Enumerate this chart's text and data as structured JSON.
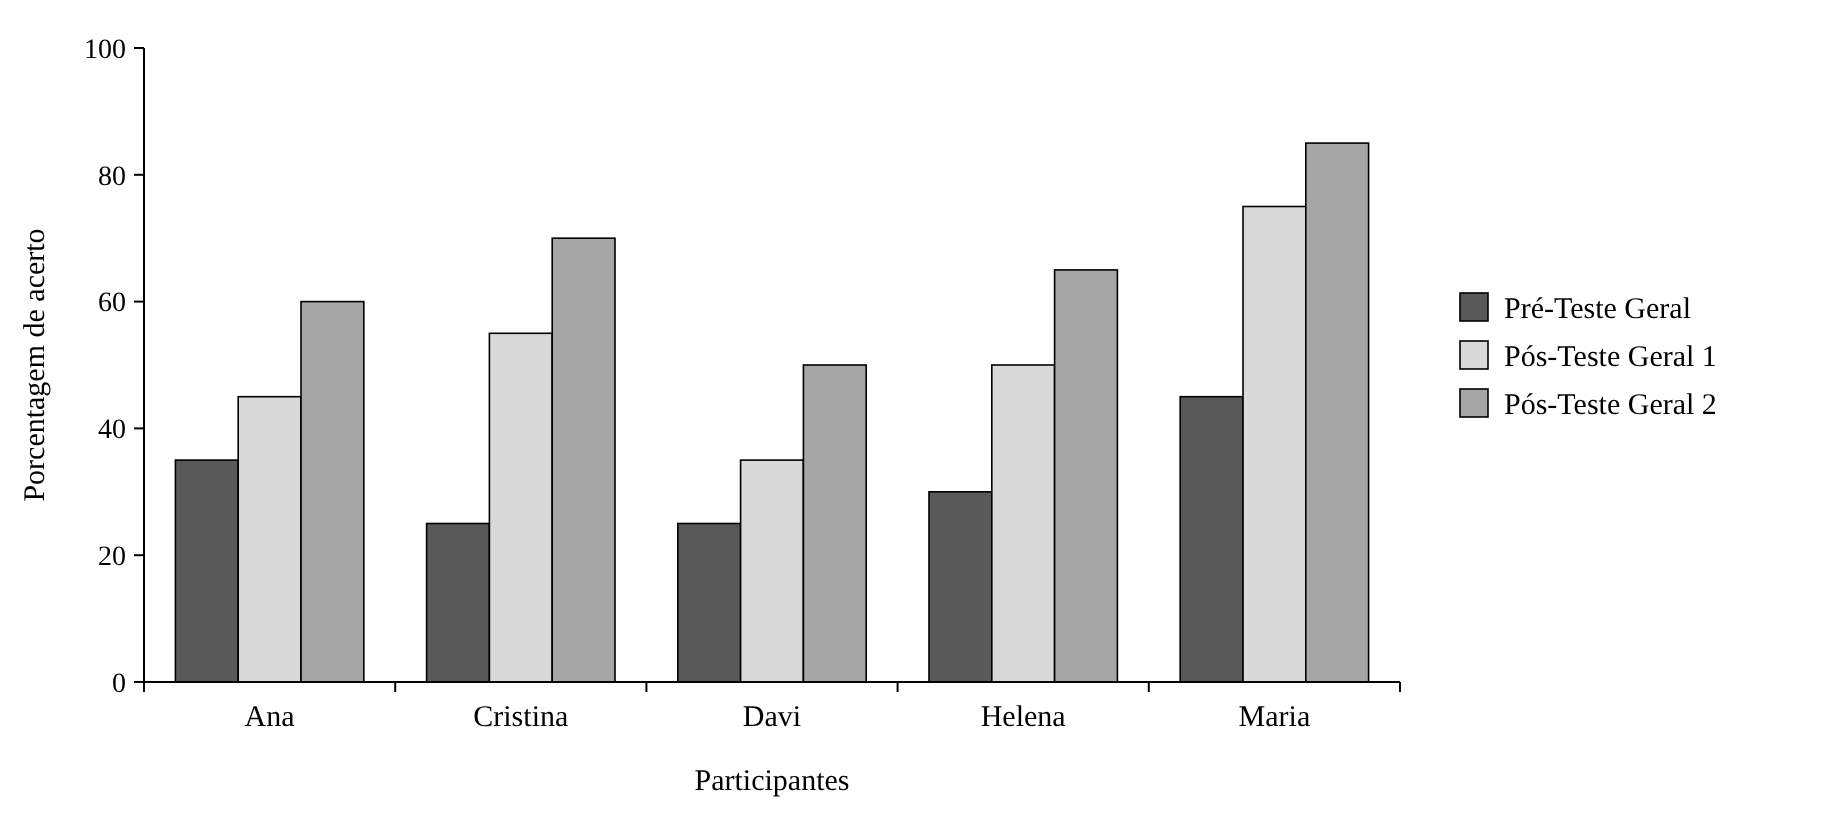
{
  "chart_data": {
    "type": "bar",
    "xlabel": "Participantes",
    "ylabel": "Porcentagem de acerto",
    "categories": [
      "Ana",
      "Cristina",
      "Davi",
      "Helena",
      "Maria"
    ],
    "series": [
      {
        "name": "Pré-Teste Geral",
        "color": "#595959",
        "values": [
          35,
          25,
          25,
          30,
          45
        ]
      },
      {
        "name": "Pós-Teste Geral 1",
        "color": "#d9d9d9",
        "values": [
          45,
          55,
          35,
          50,
          75
        ]
      },
      {
        "name": "Pós-Teste Geral 2",
        "color": "#a6a6a6",
        "values": [
          60,
          70,
          50,
          65,
          85
        ]
      }
    ],
    "ylim": [
      0,
      100
    ],
    "yticks": [
      0,
      20,
      40,
      60,
      80,
      100
    ],
    "grid": false,
    "legend": "right"
  }
}
